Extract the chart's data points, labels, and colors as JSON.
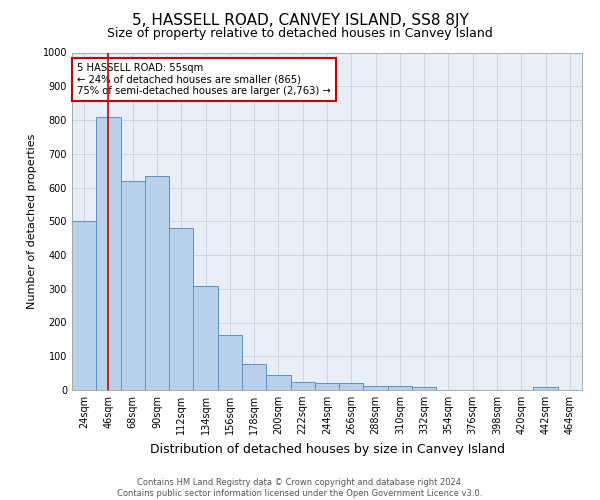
{
  "title": "5, HASSELL ROAD, CANVEY ISLAND, SS8 8JY",
  "subtitle": "Size of property relative to detached houses in Canvey Island",
  "xlabel": "Distribution of detached houses by size in Canvey Island",
  "ylabel": "Number of detached properties",
  "footer_line1": "Contains HM Land Registry data © Crown copyright and database right 2024.",
  "footer_line2": "Contains public sector information licensed under the Open Government Licence v3.0.",
  "categories": [
    "24sqm",
    "46sqm",
    "68sqm",
    "90sqm",
    "112sqm",
    "134sqm",
    "156sqm",
    "178sqm",
    "200sqm",
    "222sqm",
    "244sqm",
    "266sqm",
    "288sqm",
    "310sqm",
    "332sqm",
    "354sqm",
    "376sqm",
    "398sqm",
    "420sqm",
    "442sqm",
    "464sqm"
  ],
  "values": [
    500,
    810,
    620,
    635,
    480,
    308,
    163,
    78,
    44,
    25,
    22,
    20,
    13,
    12,
    8,
    0,
    0,
    0,
    0,
    10,
    0
  ],
  "bar_color": "#b8d0ea",
  "bar_edge_color": "#6090c0",
  "property_line_x": 1.0,
  "property_line_label": "5 HASSELL ROAD: 55sqm",
  "annotation_line1": "← 24% of detached houses are smaller (865)",
  "annotation_line2": "75% of semi-detached houses are larger (2,763) →",
  "annotation_box_color": "#cc0000",
  "ylim": [
    0,
    1000
  ],
  "yticks": [
    0,
    100,
    200,
    300,
    400,
    500,
    600,
    700,
    800,
    900,
    1000
  ],
  "title_fontsize": 11,
  "subtitle_fontsize": 9,
  "ylabel_fontsize": 8,
  "xlabel_fontsize": 9,
  "tick_fontsize": 7,
  "ytick_fontsize": 7,
  "bg_color": "#e8eef8",
  "grid_color": "#c8d0e0",
  "footer_fontsize": 6
}
